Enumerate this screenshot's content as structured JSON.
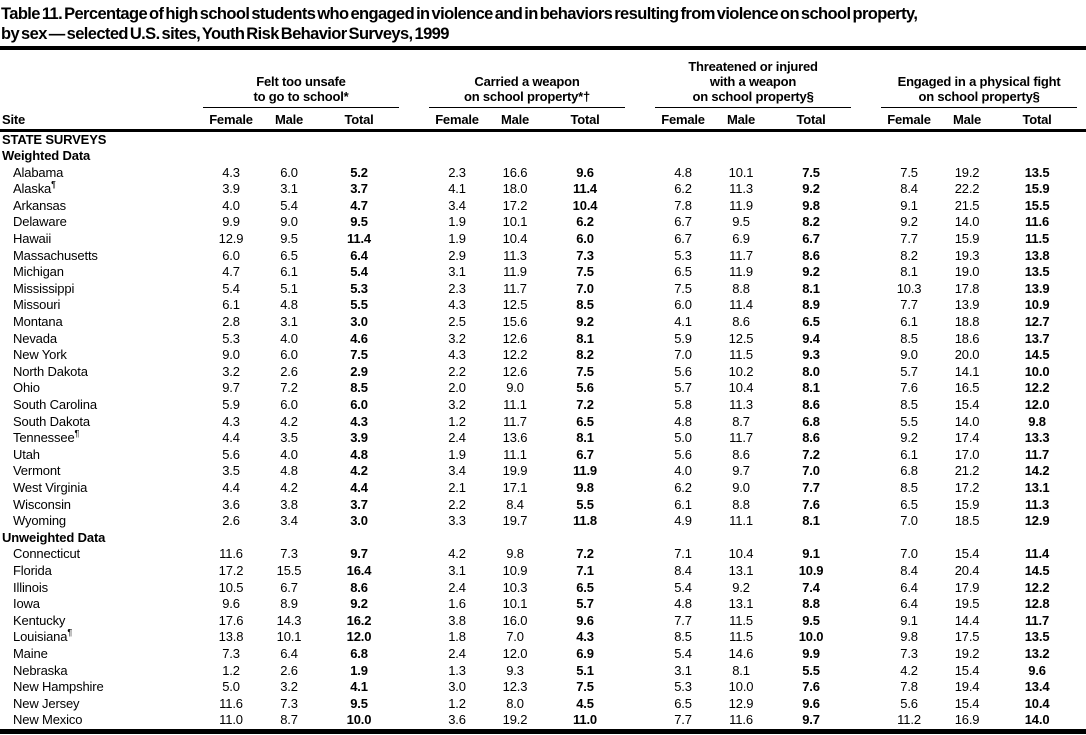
{
  "title": {
    "lines": [
      "Table 11. Percentage of high school students who engaged in violence and in behaviors resulting from violence on school property,",
      "by sex — selected U.S. sites, Youth Risk Behavior Surveys, 1999"
    ]
  },
  "table": {
    "site_header": "Site",
    "sub_headers": [
      "Female",
      "Male",
      "Total"
    ],
    "column_groups": [
      {
        "lines": [
          "Felt too unsafe",
          "to go to school*"
        ]
      },
      {
        "lines": [
          "Carried a weapon",
          "on school property*†"
        ]
      },
      {
        "lines": [
          "Threatened or injured",
          "with a weapon",
          "on school property§"
        ]
      },
      {
        "lines": [
          "Engaged in a physical fight",
          "on school property§"
        ]
      }
    ],
    "sections": [
      {
        "name": "STATE SURVEYS",
        "subsections": [
          {
            "name": "Weighted Data",
            "rows": [
              {
                "site": "Alabama",
                "values": [
                  "4.3",
                  "6.0",
                  "5.2",
                  "2.3",
                  "16.6",
                  "9.6",
                  "4.8",
                  "10.1",
                  "7.5",
                  "7.5",
                  "19.2",
                  "13.5"
                ]
              },
              {
                "site": "Alaska",
                "marker": "¶",
                "values": [
                  "3.9",
                  "3.1",
                  "3.7",
                  "4.1",
                  "18.0",
                  "11.4",
                  "6.2",
                  "11.3",
                  "9.2",
                  "8.4",
                  "22.2",
                  "15.9"
                ]
              },
              {
                "site": "Arkansas",
                "values": [
                  "4.0",
                  "5.4",
                  "4.7",
                  "3.4",
                  "17.2",
                  "10.4",
                  "7.8",
                  "11.9",
                  "9.8",
                  "9.1",
                  "21.5",
                  "15.5"
                ]
              },
              {
                "site": "Delaware",
                "values": [
                  "9.9",
                  "9.0",
                  "9.5",
                  "1.9",
                  "10.1",
                  "6.2",
                  "6.7",
                  "9.5",
                  "8.2",
                  "9.2",
                  "14.0",
                  "11.6"
                ]
              },
              {
                "site": "Hawaii",
                "values": [
                  "12.9",
                  "9.5",
                  "11.4",
                  "1.9",
                  "10.4",
                  "6.0",
                  "6.7",
                  "6.9",
                  "6.7",
                  "7.7",
                  "15.9",
                  "11.5"
                ]
              },
              {
                "site": "Massachusetts",
                "values": [
                  "6.0",
                  "6.5",
                  "6.4",
                  "2.9",
                  "11.3",
                  "7.3",
                  "5.3",
                  "11.7",
                  "8.6",
                  "8.2",
                  "19.3",
                  "13.8"
                ]
              },
              {
                "site": "Michigan",
                "values": [
                  "4.7",
                  "6.1",
                  "5.4",
                  "3.1",
                  "11.9",
                  "7.5",
                  "6.5",
                  "11.9",
                  "9.2",
                  "8.1",
                  "19.0",
                  "13.5"
                ]
              },
              {
                "site": "Mississippi",
                "values": [
                  "5.4",
                  "5.1",
                  "5.3",
                  "2.3",
                  "11.7",
                  "7.0",
                  "7.5",
                  "8.8",
                  "8.1",
                  "10.3",
                  "17.8",
                  "13.9"
                ]
              },
              {
                "site": "Missouri",
                "values": [
                  "6.1",
                  "4.8",
                  "5.5",
                  "4.3",
                  "12.5",
                  "8.5",
                  "6.0",
                  "11.4",
                  "8.9",
                  "7.7",
                  "13.9",
                  "10.9"
                ]
              },
              {
                "site": "Montana",
                "values": [
                  "2.8",
                  "3.1",
                  "3.0",
                  "2.5",
                  "15.6",
                  "9.2",
                  "4.1",
                  "8.6",
                  "6.5",
                  "6.1",
                  "18.8",
                  "12.7"
                ]
              },
              {
                "site": "Nevada",
                "values": [
                  "5.3",
                  "4.0",
                  "4.6",
                  "3.2",
                  "12.6",
                  "8.1",
                  "5.9",
                  "12.5",
                  "9.4",
                  "8.5",
                  "18.6",
                  "13.7"
                ]
              },
              {
                "site": "New York",
                "values": [
                  "9.0",
                  "6.0",
                  "7.5",
                  "4.3",
                  "12.2",
                  "8.2",
                  "7.0",
                  "11.5",
                  "9.3",
                  "9.0",
                  "20.0",
                  "14.5"
                ]
              },
              {
                "site": "North Dakota",
                "values": [
                  "3.2",
                  "2.6",
                  "2.9",
                  "2.2",
                  "12.6",
                  "7.5",
                  "5.6",
                  "10.2",
                  "8.0",
                  "5.7",
                  "14.1",
                  "10.0"
                ]
              },
              {
                "site": "Ohio",
                "values": [
                  "9.7",
                  "7.2",
                  "8.5",
                  "2.0",
                  "9.0",
                  "5.6",
                  "5.7",
                  "10.4",
                  "8.1",
                  "7.6",
                  "16.5",
                  "12.2"
                ]
              },
              {
                "site": "South Carolina",
                "values": [
                  "5.9",
                  "6.0",
                  "6.0",
                  "3.2",
                  "11.1",
                  "7.2",
                  "5.8",
                  "11.3",
                  "8.6",
                  "8.5",
                  "15.4",
                  "12.0"
                ]
              },
              {
                "site": "South Dakota",
                "values": [
                  "4.3",
                  "4.2",
                  "4.3",
                  "1.2",
                  "11.7",
                  "6.5",
                  "4.8",
                  "8.7",
                  "6.8",
                  "5.5",
                  "14.0",
                  "9.8"
                ]
              },
              {
                "site": "Tennessee",
                "marker": "¶",
                "values": [
                  "4.4",
                  "3.5",
                  "3.9",
                  "2.4",
                  "13.6",
                  "8.1",
                  "5.0",
                  "11.7",
                  "8.6",
                  "9.2",
                  "17.4",
                  "13.3"
                ]
              },
              {
                "site": "Utah",
                "values": [
                  "5.6",
                  "4.0",
                  "4.8",
                  "1.9",
                  "11.1",
                  "6.7",
                  "5.6",
                  "8.6",
                  "7.2",
                  "6.1",
                  "17.0",
                  "11.7"
                ]
              },
              {
                "site": "Vermont",
                "values": [
                  "3.5",
                  "4.8",
                  "4.2",
                  "3.4",
                  "19.9",
                  "11.9",
                  "4.0",
                  "9.7",
                  "7.0",
                  "6.8",
                  "21.2",
                  "14.2"
                ]
              },
              {
                "site": "West Virginia",
                "values": [
                  "4.4",
                  "4.2",
                  "4.4",
                  "2.1",
                  "17.1",
                  "9.8",
                  "6.2",
                  "9.0",
                  "7.7",
                  "8.5",
                  "17.2",
                  "13.1"
                ]
              },
              {
                "site": "Wisconsin",
                "values": [
                  "3.6",
                  "3.8",
                  "3.7",
                  "2.2",
                  "8.4",
                  "5.5",
                  "6.1",
                  "8.8",
                  "7.6",
                  "6.5",
                  "15.9",
                  "11.3"
                ]
              },
              {
                "site": "Wyoming",
                "values": [
                  "2.6",
                  "3.4",
                  "3.0",
                  "3.3",
                  "19.7",
                  "11.8",
                  "4.9",
                  "11.1",
                  "8.1",
                  "7.0",
                  "18.5",
                  "12.9"
                ]
              }
            ]
          },
          {
            "name": "Unweighted Data",
            "rows": [
              {
                "site": "Connecticut",
                "values": [
                  "11.6",
                  "7.3",
                  "9.7",
                  "4.2",
                  "9.8",
                  "7.2",
                  "7.1",
                  "10.4",
                  "9.1",
                  "7.0",
                  "15.4",
                  "11.4"
                ]
              },
              {
                "site": "Florida",
                "values": [
                  "17.2",
                  "15.5",
                  "16.4",
                  "3.1",
                  "10.9",
                  "7.1",
                  "8.4",
                  "13.1",
                  "10.9",
                  "8.4",
                  "20.4",
                  "14.5"
                ]
              },
              {
                "site": "Illinois",
                "values": [
                  "10.5",
                  "6.7",
                  "8.6",
                  "2.4",
                  "10.3",
                  "6.5",
                  "5.4",
                  "9.2",
                  "7.4",
                  "6.4",
                  "17.9",
                  "12.2"
                ]
              },
              {
                "site": "Iowa",
                "values": [
                  "9.6",
                  "8.9",
                  "9.2",
                  "1.6",
                  "10.1",
                  "5.7",
                  "4.8",
                  "13.1",
                  "8.8",
                  "6.4",
                  "19.5",
                  "12.8"
                ]
              },
              {
                "site": "Kentucky",
                "values": [
                  "17.6",
                  "14.3",
                  "16.2",
                  "3.8",
                  "16.0",
                  "9.6",
                  "7.7",
                  "11.5",
                  "9.5",
                  "9.1",
                  "14.4",
                  "11.7"
                ]
              },
              {
                "site": "Louisiana",
                "marker": "¶",
                "values": [
                  "13.8",
                  "10.1",
                  "12.0",
                  "1.8",
                  "7.0",
                  "4.3",
                  "8.5",
                  "11.5",
                  "10.0",
                  "9.8",
                  "17.5",
                  "13.5"
                ]
              },
              {
                "site": "Maine",
                "values": [
                  "7.3",
                  "6.4",
                  "6.8",
                  "2.4",
                  "12.0",
                  "6.9",
                  "5.4",
                  "14.6",
                  "9.9",
                  "7.3",
                  "19.2",
                  "13.2"
                ]
              },
              {
                "site": "Nebraska",
                "values": [
                  "1.2",
                  "2.6",
                  "1.9",
                  "1.3",
                  "9.3",
                  "5.1",
                  "3.1",
                  "8.1",
                  "5.5",
                  "4.2",
                  "15.4",
                  "9.6"
                ]
              },
              {
                "site": "New Hampshire",
                "values": [
                  "5.0",
                  "3.2",
                  "4.1",
                  "3.0",
                  "12.3",
                  "7.5",
                  "5.3",
                  "10.0",
                  "7.6",
                  "7.8",
                  "19.4",
                  "13.4"
                ]
              },
              {
                "site": "New Jersey",
                "values": [
                  "11.6",
                  "7.3",
                  "9.5",
                  "1.2",
                  "8.0",
                  "4.5",
                  "6.5",
                  "12.9",
                  "9.6",
                  "5.6",
                  "15.4",
                  "10.4"
                ]
              },
              {
                "site": "New Mexico",
                "values": [
                  "11.0",
                  "8.7",
                  "10.0",
                  "3.6",
                  "19.2",
                  "11.0",
                  "7.7",
                  "11.6",
                  "9.7",
                  "11.2",
                  "16.9",
                  "14.0"
                ]
              }
            ]
          }
        ]
      }
    ]
  }
}
